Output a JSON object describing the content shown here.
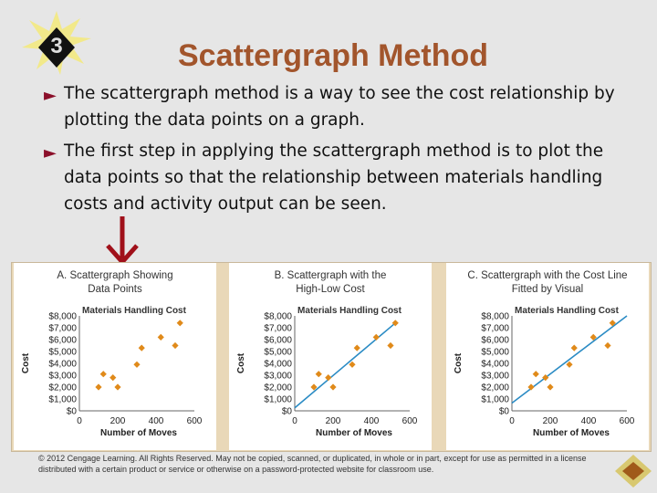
{
  "slide": {
    "number": "3",
    "title": "Scattergraph Method",
    "bullets": [
      "The scattergraph method is a way to see the cost relationship by plotting the data points on a graph.",
      "The first step in applying the scattergraph method is to plot the data points so that the relationship between materials handling costs and activity output can be seen."
    ],
    "bullet_marker": "►",
    "copyright": "© 2012 Cengage Learning. All Rights Reserved. May not be copied, scanned, or duplicated, in whole or in part, except for use as permitted in a license distributed with a certain product or service or otherwise on a password-protected website for classroom use."
  },
  "colors": {
    "title": "#a2552c",
    "bullet_marker": "#8b0f2a",
    "arrow": "#a0101a",
    "points": "#e08a1a",
    "fit_line": "#2a8bc4",
    "figure_background": "#e9d8b8"
  },
  "icons": {
    "down-arrow": "down-arrow-icon",
    "corner": "diamond-icon"
  },
  "chart_data": [
    {
      "type": "scatter",
      "title": "A. Scattergraph Showing Data Points",
      "subtitle": "Materials Handling Cost",
      "xlabel": "Number of Moves",
      "ylabel": "Cost",
      "xticks": [
        "0",
        "200",
        "400",
        "600"
      ],
      "yticks": [
        "$0",
        "$1,000",
        "$2,000",
        "$3,000",
        "$4,000",
        "$5,000",
        "$6,000",
        "$7,000",
        "$8,000"
      ],
      "xlim": [
        0,
        600
      ],
      "ylim": [
        0,
        8000
      ],
      "points": [
        [
          100,
          2000
        ],
        [
          125,
          3100
        ],
        [
          175,
          2800
        ],
        [
          200,
          2000
        ],
        [
          300,
          3900
        ],
        [
          325,
          5300
        ],
        [
          425,
          6200
        ],
        [
          500,
          5500
        ],
        [
          525,
          7400
        ]
      ],
      "line": null
    },
    {
      "type": "scatter",
      "title": "B. Scattergraph with the High-Low Cost",
      "subtitle": "Materials Handling Cost",
      "xlabel": "Number of Moves",
      "ylabel": "Cost",
      "xticks": [
        "0",
        "200",
        "400",
        "600"
      ],
      "yticks": [
        "$0",
        "$1,000",
        "$2,000",
        "$3,000",
        "$4,000",
        "$5,000",
        "$6,000",
        "$7,000",
        "$8,000"
      ],
      "xlim": [
        0,
        600
      ],
      "ylim": [
        0,
        8000
      ],
      "points": [
        [
          100,
          2000
        ],
        [
          125,
          3100
        ],
        [
          175,
          2800
        ],
        [
          200,
          2000
        ],
        [
          300,
          3900
        ],
        [
          325,
          5300
        ],
        [
          425,
          6200
        ],
        [
          500,
          5500
        ],
        [
          525,
          7400
        ]
      ],
      "line": [
        [
          0,
          250
        ],
        [
          525,
          7400
        ]
      ]
    },
    {
      "type": "scatter",
      "title": "C. Scattergraph with the Cost Line Fitted by Visual",
      "subtitle": "Materials Handling Cost",
      "xlabel": "Number of Moves",
      "ylabel": "Cost",
      "xticks": [
        "0",
        "200",
        "400",
        "600"
      ],
      "yticks": [
        "$0",
        "$1,000",
        "$2,000",
        "$3,000",
        "$4,000",
        "$5,000",
        "$6,000",
        "$7,000",
        "$8,000"
      ],
      "xlim": [
        0,
        600
      ],
      "ylim": [
        0,
        8000
      ],
      "points": [
        [
          100,
          2000
        ],
        [
          125,
          3100
        ],
        [
          175,
          2800
        ],
        [
          200,
          2000
        ],
        [
          300,
          3900
        ],
        [
          325,
          5300
        ],
        [
          425,
          6200
        ],
        [
          500,
          5500
        ],
        [
          525,
          7400
        ]
      ],
      "line": [
        [
          0,
          650
        ],
        [
          600,
          8000
        ]
      ]
    }
  ]
}
